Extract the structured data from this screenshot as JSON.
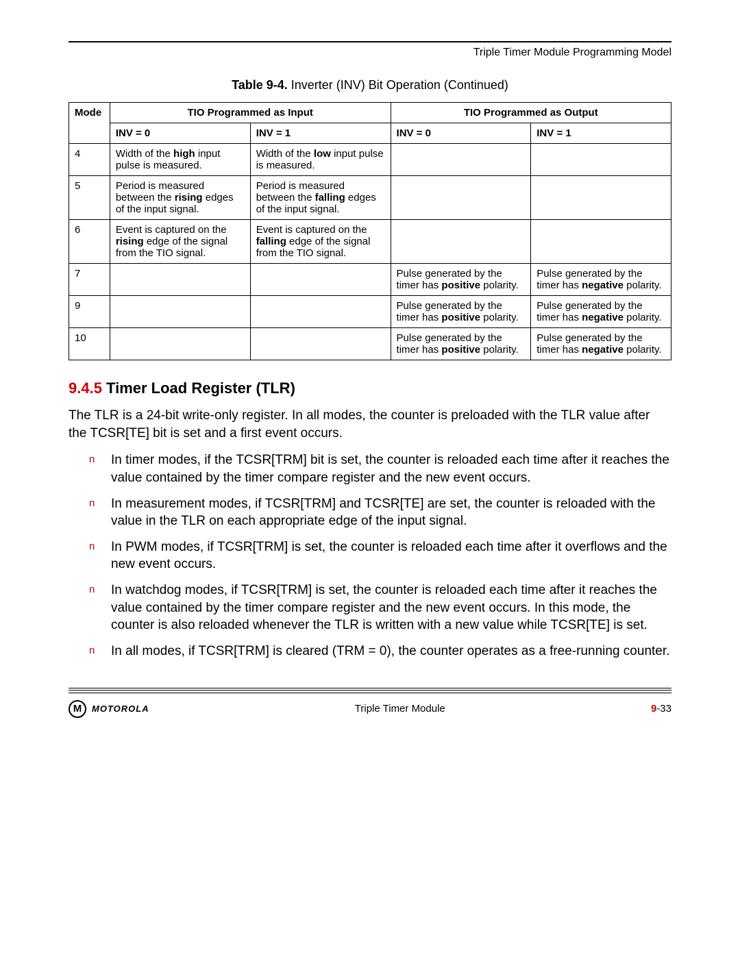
{
  "header": {
    "title": "Triple Timer Module Programming Model"
  },
  "table": {
    "caption_label": "Table 9-4.",
    "caption_text": " Inverter (INV) Bit Operation  (Continued)",
    "head": {
      "mode": "Mode",
      "input": "TIO Programmed as Input",
      "output": "TIO Programmed as Output",
      "inv0": "INV = 0",
      "inv1": "INV = 1"
    },
    "rows": [
      {
        "mode": "4",
        "in0_a": "Width of the ",
        "in0_b": "high",
        "in0_c": " input pulse is measured.",
        "in1_a": "Width of the ",
        "in1_b": "low",
        "in1_c": " input pulse is measured.",
        "out0": "",
        "out1": ""
      },
      {
        "mode": "5",
        "in0_a": "Period is measured between the ",
        "in0_b": "rising",
        "in0_c": " edges of the input signal.",
        "in1_a": "Period is measured between the ",
        "in1_b": "falling",
        "in1_c": " edges of the input signal.",
        "out0": "",
        "out1": ""
      },
      {
        "mode": "6",
        "in0_a": "Event is captured on the ",
        "in0_b": "rising",
        "in0_c": " edge of the signal from the TIO signal.",
        "in1_a": "Event is captured on the ",
        "in1_b": "falling",
        "in1_c": " edge of the signal from the TIO signal.",
        "out0": "",
        "out1": ""
      },
      {
        "mode": "7",
        "in0_a": "",
        "in0_b": "",
        "in0_c": "",
        "in1_a": "",
        "in1_b": "",
        "in1_c": "",
        "out0_a": "Pulse generated by the timer has ",
        "out0_b": "positive",
        "out0_c": " polarity.",
        "out1_a": "Pulse generated by the timer has ",
        "out1_b": "negative",
        "out1_c": " polarity."
      },
      {
        "mode": "9",
        "in0_a": "",
        "in0_b": "",
        "in0_c": "",
        "in1_a": "",
        "in1_b": "",
        "in1_c": "",
        "out0_a": "Pulse generated by the timer has ",
        "out0_b": "positive",
        "out0_c": " polarity.",
        "out1_a": "Pulse generated by the timer has ",
        "out1_b": "negative",
        "out1_c": " polarity."
      },
      {
        "mode": "10",
        "in0_a": "",
        "in0_b": "",
        "in0_c": "",
        "in1_a": "",
        "in1_b": "",
        "in1_c": "",
        "out0_a": "Pulse generated by the timer has ",
        "out0_b": "positive",
        "out0_c": " polarity.",
        "out1_a": "Pulse generated by the timer has ",
        "out1_b": "negative",
        "out1_c": " polarity."
      }
    ]
  },
  "section": {
    "num": "9.4.5",
    "title": " Timer Load Register (TLR)",
    "paragraph": "The TLR is a 24-bit write-only register. In all modes, the counter is preloaded with the TLR value after the TCSR[TE] bit is set and a first event occurs.",
    "bullets": [
      "In timer modes, if the TCSR[TRM] bit is set, the counter is reloaded each time after it reaches the value contained by the timer compare register and the new event occurs.",
      "In measurement modes, if TCSR[TRM] and TCSR[TE] are set, the counter is reloaded with the value in the TLR on each appropriate edge of the input signal.",
      "In PWM modes, if TCSR[TRM] is set, the counter is reloaded each time after it overflows and the new event occurs.",
      "In watchdog modes, if TCSR[TRM] is set, the counter is reloaded each time after it reaches the value contained by the timer compare register and the new event occurs. In this mode, the counter is also reloaded whenever the TLR is written with a new value while TCSR[TE] is set.",
      "In all modes, if TCSR[TRM] is cleared (TRM = 0), the counter operates as a free-running counter."
    ],
    "bullet_marker": "n"
  },
  "footer": {
    "logo_letter": "M",
    "brand": "MOTOROLA",
    "center": "Triple Timer Module",
    "chapter": "9",
    "page": "-33"
  },
  "colors": {
    "accent": "#cc0000"
  }
}
